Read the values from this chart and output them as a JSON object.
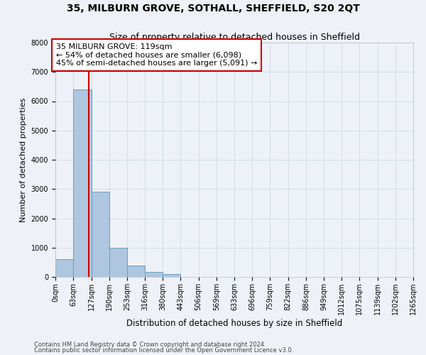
{
  "title": "35, MILBURN GROVE, SOTHALL, SHEFFIELD, S20 2QT",
  "subtitle": "Size of property relative to detached houses in Sheffield",
  "xlabel": "Distribution of detached houses by size in Sheffield",
  "ylabel": "Number of detached properties",
  "bin_edges": [
    0,
    63,
    127,
    190,
    253,
    316,
    380,
    443,
    506,
    569,
    633,
    696,
    759,
    822,
    886,
    949,
    1012,
    1075,
    1139,
    1202,
    1265
  ],
  "bar_heights": [
    600,
    6400,
    2900,
    1000,
    380,
    170,
    100,
    0,
    0,
    0,
    0,
    0,
    0,
    0,
    0,
    0,
    0,
    0,
    0,
    0
  ],
  "bar_color": "#aec6df",
  "bar_edgecolor": "#6a9fc0",
  "grid_color": "#d4dce8",
  "background_color": "#eef2f8",
  "vline_x": 119,
  "vline_color": "#cc0000",
  "annotation_text": "35 MILBURN GROVE: 119sqm\n← 54% of detached houses are smaller (6,098)\n45% of semi-detached houses are larger (5,091) →",
  "annotation_box_color": "#ffffff",
  "annotation_border_color": "#cc0000",
  "ylim": [
    0,
    8000
  ],
  "yticks": [
    0,
    1000,
    2000,
    3000,
    4000,
    5000,
    6000,
    7000,
    8000
  ],
  "footnote1": "Contains HM Land Registry data © Crown copyright and database right 2024.",
  "footnote2": "Contains public sector information licensed under the Open Government Licence v3.0.",
  "title_fontsize": 10,
  "subtitle_fontsize": 9,
  "tick_label_fontsize": 7,
  "ylabel_fontsize": 8,
  "xlabel_fontsize": 8.5,
  "annotation_fontsize": 8,
  "footnote_fontsize": 6
}
